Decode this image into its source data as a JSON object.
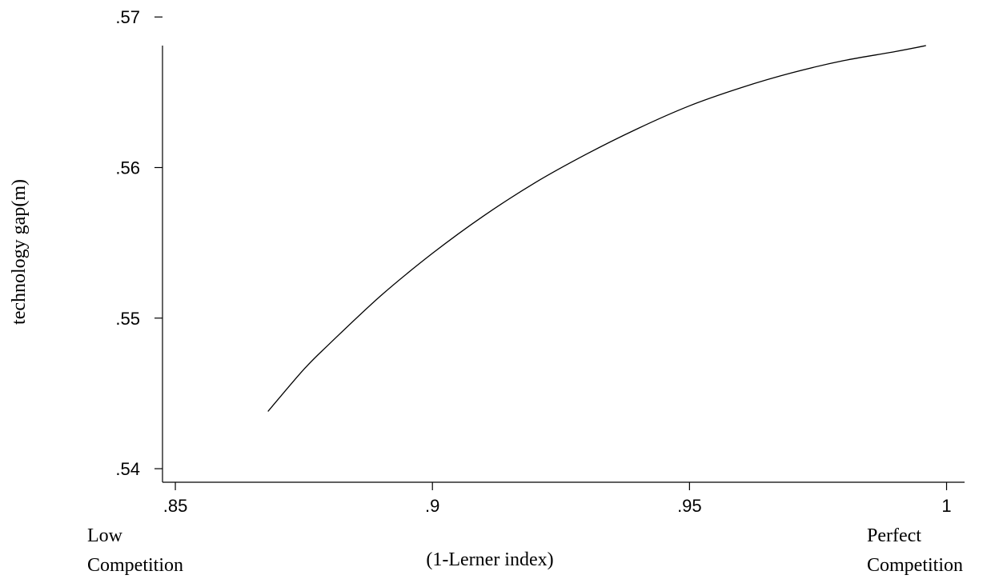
{
  "chart_data": {
    "type": "line",
    "title": "",
    "ylabel": "technology gap(m)",
    "xlabel": "(1-Lerner index)",
    "xlim": [
      0.8475,
      1.0035
    ],
    "ylim": [
      0.5391,
      0.5681
    ],
    "xticks": [
      0.85,
      0.9,
      0.95,
      1
    ],
    "xtick_labels": [
      ".85",
      ".9",
      ".95",
      "1"
    ],
    "yticks": [
      0.54,
      0.55,
      0.56,
      0.57
    ],
    "ytick_labels": [
      ".54",
      ".55",
      ".56",
      ".57"
    ],
    "x_annotations": {
      "left": [
        "Low",
        "Competition"
      ],
      "right": [
        "Perfect",
        "Competition"
      ]
    },
    "grid": false,
    "series": [
      {
        "x": [
          0.868,
          0.875,
          0.88,
          0.89,
          0.9,
          0.91,
          0.92,
          0.93,
          0.94,
          0.95,
          0.96,
          0.97,
          0.98,
          0.99,
          0.996
        ],
        "y": [
          0.5438,
          0.5466,
          0.5483,
          0.5515,
          0.5543,
          0.5568,
          0.559,
          0.5609,
          0.5626,
          0.5641,
          0.5653,
          0.5663,
          0.5671,
          0.5677,
          0.5681
        ]
      }
    ]
  }
}
